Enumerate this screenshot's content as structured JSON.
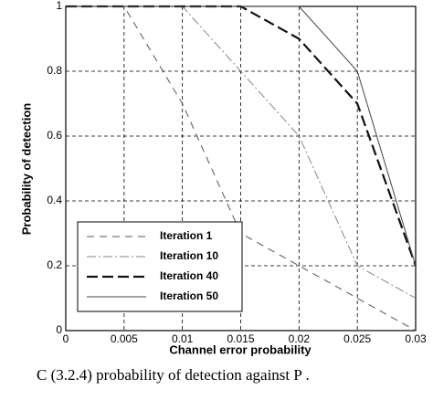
{
  "chart_data": {
    "type": "line",
    "x_label": "Channel error probability",
    "y_label": "Probability of detection",
    "caption": "C (3.2.4) probability of detection against P .",
    "x": [
      0,
      0.005,
      0.01,
      0.015,
      0.02,
      0.025,
      0.03
    ],
    "series": [
      {
        "name": "Iteration 1",
        "color": "#555555",
        "dash": "8,6",
        "width": 1,
        "values": [
          1,
          1,
          0.7,
          0.3,
          0.2,
          0.1,
          0
        ]
      },
      {
        "name": "Iteration 10",
        "color": "#888888",
        "dash": "10,3,2,3",
        "width": 1,
        "values": [
          1,
          1,
          1,
          0.8,
          0.6,
          0.2,
          0.1
        ]
      },
      {
        "name": "Iteration 40",
        "color": "#111111",
        "dash": "12,5",
        "width": 2.2,
        "values": [
          1,
          1,
          1,
          1,
          0.9,
          0.7,
          0.2
        ]
      },
      {
        "name": "Iteration 50",
        "color": "#444444",
        "dash": "none",
        "width": 1,
        "values": [
          1,
          1,
          1,
          1,
          1,
          0.8,
          0.2
        ]
      }
    ],
    "xlim": [
      0,
      0.03
    ],
    "xticks": [
      0,
      0.005,
      0.01,
      0.015,
      0.02,
      0.025,
      0.03
    ],
    "ylim": [
      0,
      1
    ],
    "yticks": [
      0,
      0.2,
      0.4,
      0.6,
      0.8,
      1
    ],
    "grid": true,
    "legend": "lower left"
  }
}
